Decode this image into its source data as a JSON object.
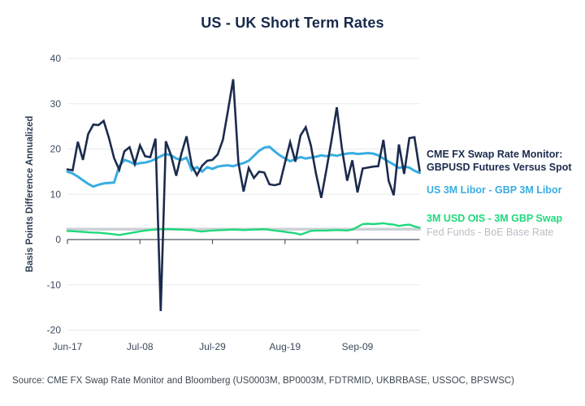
{
  "title": "US - UK Short Term Rates",
  "y_axis_title": "Basis Points Difference Annualized",
  "source": "Source: CME FX Swap Rate Monitor and Bloomberg (US0003M, BP0003M, FDTRMID, UKBRBASE, USSOC, BPSWSC)",
  "legend": [
    {
      "lines": [
        "CME FX Swap Rate Monitor:",
        "GBPUSD Futures Versus Spot"
      ],
      "color": "#1b2b4d",
      "bold": true
    },
    {
      "lines": [
        "US 3M Libor - GBP 3M Libor"
      ],
      "color": "#39ade2",
      "bold": true
    },
    {
      "lines": [
        "3M USD OIS - 3M GBP Swap"
      ],
      "color": "#1fd97c",
      "bold": true
    },
    {
      "lines": [
        "Fed Funds - BoE Base Rate"
      ],
      "color": "#b9bfc6",
      "bold": false
    }
  ],
  "colors": {
    "grid": "#e7e9ec",
    "axis": "#4d5864",
    "tick_label": "#3c4a5c"
  },
  "chart_data": {
    "type": "line",
    "title": "US - UK Short Term Rates",
    "xlabel": "",
    "ylabel": "Basis Points Difference Annualized",
    "ylim": [
      -20,
      40
    ],
    "y_ticks": [
      40,
      30,
      20,
      10,
      0,
      -10,
      -20
    ],
    "grid": true,
    "legend_position": "right",
    "x_unit": "days since Jun-17",
    "x_range": [
      0,
      102
    ],
    "x_ticks": [
      {
        "day": 0,
        "label": "Jun-17"
      },
      {
        "day": 21,
        "label": "Jul-08"
      },
      {
        "day": 42,
        "label": "Jul-29"
      },
      {
        "day": 63,
        "label": "Aug-19"
      },
      {
        "day": 84,
        "label": "Sep-09"
      }
    ],
    "series": [
      {
        "id": "cme-fx-swap-rate-monitor",
        "name": "CME FX Swap Rate Monitor: GBPUSD Futures Versus Spot",
        "color": "#1b2b4d",
        "width": 2.6,
        "values": [
          15.5,
          15.3,
          21.6,
          17.6,
          23.3,
          25.4,
          25.3,
          26.2,
          22.5,
          18.0,
          15.4,
          19.5,
          20.4,
          16.7,
          20.8,
          18.4,
          18.2,
          22.3,
          -15.8,
          21.7,
          18.6,
          14.1,
          19.0,
          22.8,
          16.4,
          14.2,
          16.3,
          17.4,
          17.6,
          18.8,
          22.0,
          28.5,
          35.4,
          17.0,
          10.6,
          15.8,
          13.6,
          15.0,
          14.8,
          12.2,
          12.0,
          12.3,
          17.0,
          21.5,
          17.2,
          23.0,
          24.8,
          20.8,
          14.5,
          9.2,
          15.5,
          22.0,
          29.2,
          20.0,
          13.0,
          17.5,
          10.4,
          15.7,
          15.9,
          16.1,
          16.2,
          22.0,
          13.0,
          9.8,
          21.0,
          14.5,
          22.4,
          22.6,
          15.2
        ]
      },
      {
        "id": "us-3m-libor-minus-gbp-3m-libor",
        "name": "US 3M Libor - GBP 3M Libor",
        "color": "#39ade2",
        "width": 3,
        "values": [
          15.0,
          14.6,
          13.9,
          13.1,
          12.3,
          11.7,
          12.1,
          12.4,
          12.5,
          12.6,
          16.2,
          17.6,
          17.2,
          16.6,
          16.9,
          17.0,
          17.3,
          17.8,
          18.4,
          18.9,
          18.6,
          17.9,
          17.6,
          18.1,
          15.3,
          16.0,
          15.0,
          16.0,
          15.6,
          16.1,
          16.3,
          16.4,
          16.2,
          16.6,
          16.9,
          17.4,
          18.5,
          19.6,
          20.3,
          20.5,
          19.5,
          18.6,
          17.9,
          17.3,
          17.8,
          18.2,
          17.9,
          18.1,
          18.3,
          18.6,
          18.4,
          18.7,
          18.5,
          18.8,
          19.0,
          19.1,
          18.9,
          19.0,
          19.1,
          19.0,
          18.6,
          17.9,
          17.2,
          16.6,
          15.8,
          16.1,
          15.9,
          15.2,
          14.7
        ]
      },
      {
        "id": "3m-usd-ois-minus-3m-gbp-swap",
        "name": "3M USD OIS - 3M GBP Swap",
        "color": "#1fd97c",
        "width": 2.4,
        "values": [
          1.9,
          1.85,
          1.75,
          1.7,
          1.6,
          1.55,
          1.5,
          1.4,
          1.3,
          1.15,
          1.0,
          1.2,
          1.4,
          1.6,
          1.8,
          2.0,
          2.1,
          2.2,
          2.3,
          2.3,
          2.3,
          2.25,
          2.2,
          2.15,
          2.1,
          1.9,
          1.75,
          1.9,
          2.0,
          2.05,
          2.1,
          2.15,
          2.2,
          2.15,
          2.1,
          2.15,
          2.2,
          2.25,
          2.3,
          2.15,
          2.0,
          1.85,
          1.7,
          1.55,
          1.4,
          1.1,
          1.5,
          1.9,
          2.0,
          2.0,
          2.0,
          2.05,
          2.1,
          2.05,
          2.0,
          2.2,
          2.8,
          3.4,
          3.5,
          3.4,
          3.5,
          3.6,
          3.4,
          3.3,
          3.0,
          3.2,
          3.3,
          2.9,
          2.6
        ]
      },
      {
        "id": "fed-funds-minus-boe-base-rate",
        "name": "Fed Funds - BoE Base Rate",
        "color": "#ccd1d6",
        "width": 3.5,
        "values": [
          2.3,
          2.3
        ]
      }
    ]
  }
}
